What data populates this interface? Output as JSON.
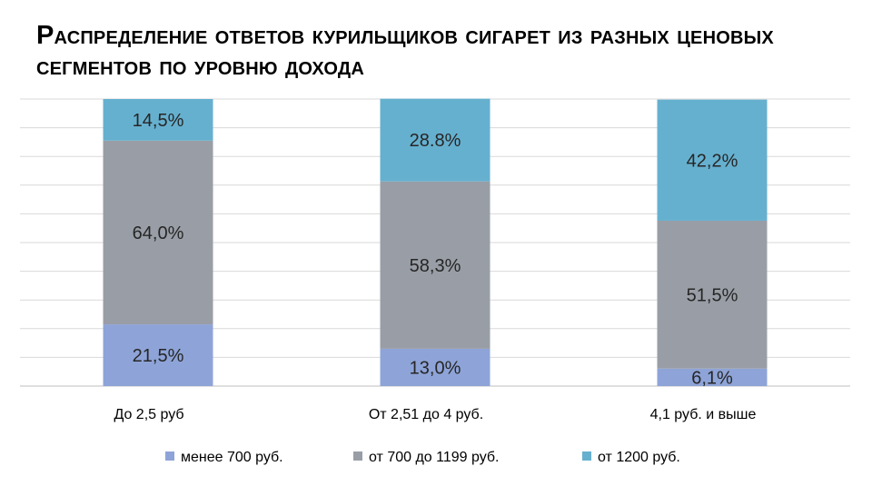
{
  "chart_data": {
    "type": "bar",
    "stacked": true,
    "normalized": true,
    "title": "Распределение ответов курильщиков сигарет из разных ценовых сегментов по уровню дохода",
    "categories": [
      "До 2,5 руб",
      "От 2,51 до 4 руб.",
      "4,1 руб. и выше"
    ],
    "series": [
      {
        "name": "менее 700 руб.",
        "color": "#8ea4d8",
        "values": [
          21.5,
          13.0,
          6.1
        ],
        "labels": [
          "21,5%",
          "13,0%",
          "6,1%"
        ]
      },
      {
        "name": "от 700 до 1199 руб.",
        "color": "#999ea6",
        "values": [
          64.0,
          58.3,
          51.5
        ],
        "labels": [
          "64,0%",
          "58,3%",
          "51,5%"
        ]
      },
      {
        "name": "от 1200 руб.",
        "color": "#66b0cf",
        "values": [
          14.5,
          28.8,
          42.2
        ],
        "labels": [
          "14,5%",
          "28.8%",
          "42,2%"
        ]
      }
    ],
    "ylim": [
      0,
      100
    ],
    "grid": true,
    "legend": "bottom"
  }
}
